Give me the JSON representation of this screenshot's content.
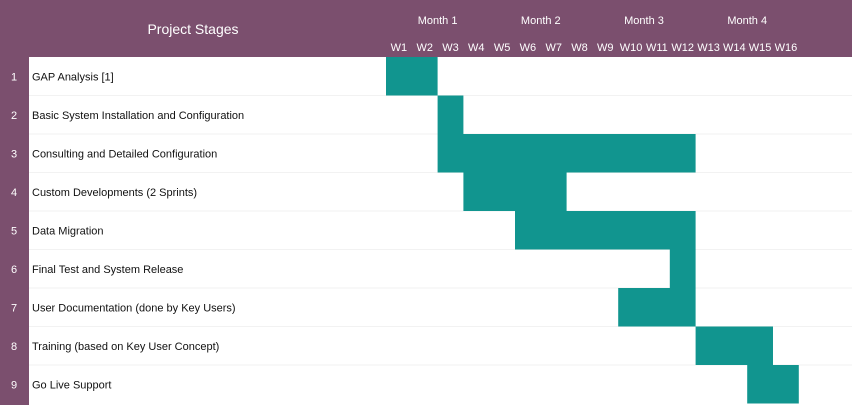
{
  "header": {
    "stages_title": "Project Stages",
    "months": [
      "Month 1",
      "Month 2",
      "Month 3",
      "Month 4"
    ],
    "weeks": [
      "W1",
      "W2",
      "W3",
      "W4",
      "W5",
      "W6",
      "W7",
      "W8",
      "W9",
      "W10",
      "W11",
      "W12",
      "W13",
      "W14",
      "W15",
      "W16"
    ]
  },
  "colors": {
    "header_bg": "#7b4f6e",
    "bar": "#11958f",
    "number_col_bg": "#7b4f6e",
    "divider": "#e6e6e6"
  },
  "chart_data": {
    "type": "gantt",
    "title": "Project Stages",
    "tasks": [
      {
        "number": "1",
        "name": "GAP Analysis [1]",
        "start_week": 1,
        "end_week": 2
      },
      {
        "number": "2",
        "name": "Basic System Installation and Configuration",
        "start_week": 3,
        "end_week": 3
      },
      {
        "number": "3",
        "name": "Consulting and Detailed Configuration",
        "start_week": 3,
        "end_week": 12
      },
      {
        "number": "4",
        "name": "Custom Developments (2 Sprints)",
        "start_week": 4,
        "end_week": 7
      },
      {
        "number": "5",
        "name": "Data Migration",
        "start_week": 6,
        "end_week": 12
      },
      {
        "number": "6",
        "name": "Final Test and System Release",
        "start_week": 12,
        "end_week": 12
      },
      {
        "number": "7",
        "name": "User Documentation (done by Key Users)",
        "start_week": 10,
        "end_week": 12
      },
      {
        "number": "8",
        "name": "Training (based on Key User Concept)",
        "start_week": 13,
        "end_week": 15
      },
      {
        "number": "9",
        "name": "Go Live Support",
        "start_week": 15,
        "end_week": 16
      }
    ]
  }
}
